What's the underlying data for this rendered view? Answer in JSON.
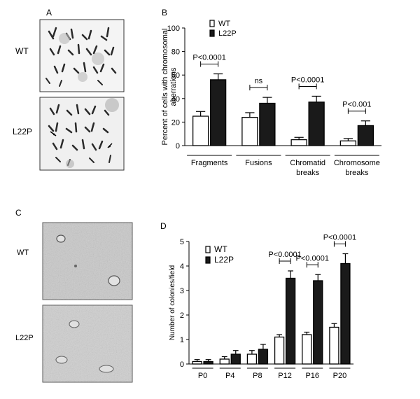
{
  "panels": {
    "A": {
      "letter": "A",
      "rows": [
        {
          "label": "WT"
        },
        {
          "label": "L22P"
        }
      ]
    },
    "C": {
      "letter": "C",
      "rows": [
        {
          "label": "WT"
        },
        {
          "label": "L22P"
        }
      ]
    }
  },
  "chart_data": [
    {
      "panel": "B",
      "type": "bar",
      "ylabel": "Percent of cells with chromosomal aberrations",
      "ylabel_lines": [
        "Percent of cells with chromosomal",
        "aberrations"
      ],
      "ylim": [
        0,
        100
      ],
      "yticks": [
        0,
        20,
        40,
        60,
        80,
        100
      ],
      "legend": {
        "placement": "top-left",
        "entries": [
          "WT",
          "L22P"
        ]
      },
      "categories": [
        {
          "lines": [
            "Fragments"
          ]
        },
        {
          "lines": [
            "Fusions"
          ]
        },
        {
          "lines": [
            "Chromatid",
            "breaks"
          ]
        },
        {
          "lines": [
            "Chromosome",
            "breaks"
          ]
        }
      ],
      "series": [
        {
          "name": "WT",
          "fill": "#ffffff",
          "values": [
            25,
            24,
            5,
            4
          ],
          "errors": [
            4,
            4,
            2,
            2
          ]
        },
        {
          "name": "L22P",
          "fill": "#1a1a1a",
          "values": [
            56,
            36,
            37,
            17
          ],
          "errors": [
            5,
            5,
            5,
            4
          ]
        }
      ],
      "annotations": [
        {
          "category": 0,
          "text": "P<0.0001"
        },
        {
          "category": 1,
          "text": "ns"
        },
        {
          "category": 2,
          "text": "P<0.0001"
        },
        {
          "category": 3,
          "text": "P<0.001"
        }
      ]
    },
    {
      "panel": "D",
      "type": "bar",
      "ylabel": "Number of colonies/field",
      "ylim": [
        0,
        5
      ],
      "yticks": [
        0,
        1,
        2,
        3,
        4,
        5
      ],
      "legend": {
        "placement": "top-left",
        "entries": [
          "WT",
          "L22P"
        ]
      },
      "categories": [
        {
          "lines": [
            "P0"
          ]
        },
        {
          "lines": [
            "P4"
          ]
        },
        {
          "lines": [
            "P8"
          ]
        },
        {
          "lines": [
            "P12"
          ]
        },
        {
          "lines": [
            "P16"
          ]
        },
        {
          "lines": [
            "P20"
          ]
        }
      ],
      "series": [
        {
          "name": "WT",
          "fill": "#ffffff",
          "values": [
            0.1,
            0.2,
            0.4,
            1.1,
            1.2,
            1.5
          ],
          "errors": [
            0.08,
            0.1,
            0.15,
            0.1,
            0.1,
            0.15
          ]
        },
        {
          "name": "L22P",
          "fill": "#1a1a1a",
          "values": [
            0.1,
            0.4,
            0.6,
            3.5,
            3.4,
            4.1
          ],
          "errors": [
            0.08,
            0.15,
            0.2,
            0.3,
            0.25,
            0.4
          ]
        }
      ],
      "annotations": [
        {
          "category": 3,
          "text": "P<0.0001"
        },
        {
          "category": 4,
          "text": "P<0.0001"
        },
        {
          "category": 5,
          "text": "P<0.0001"
        }
      ]
    }
  ]
}
